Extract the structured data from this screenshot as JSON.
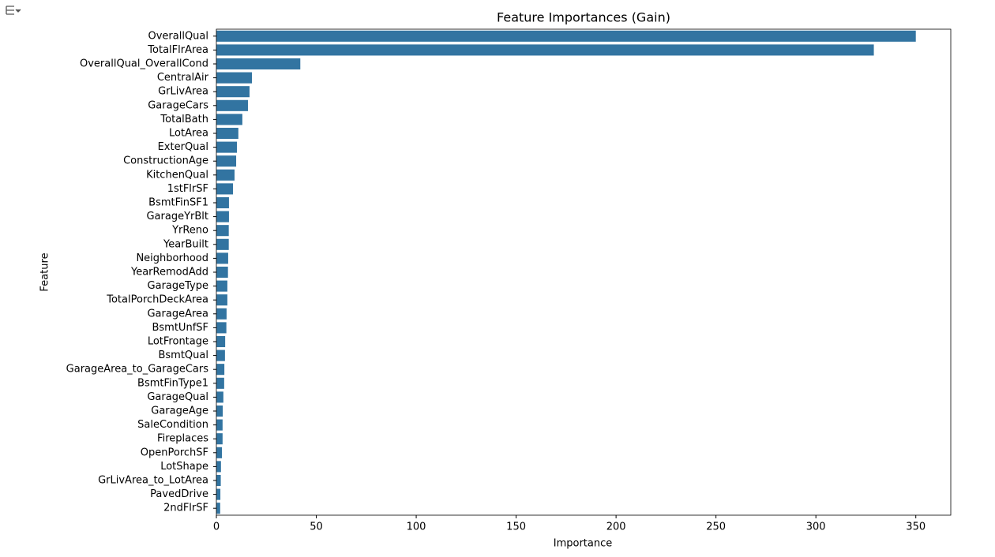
{
  "chart_data": {
    "type": "barh",
    "title": "Feature Importances (Gain)",
    "x_label": "Importance",
    "y_label": "Feature",
    "categories": [
      "OverallQual",
      "TotalFlrArea",
      "OverallQual_OverallCond",
      "CentralAir",
      "GrLivArea",
      "GarageCars",
      "TotalBath",
      "LotArea",
      "ExterQual",
      "ConstructionAge",
      "KitchenQual",
      "1stFlrSF",
      "BsmtFinSF1",
      "GarageYrBlt",
      "YrReno",
      "YearBuilt",
      "Neighborhood",
      "YearRemodAdd",
      "GarageType",
      "TotalPorchDeckArea",
      "GarageArea",
      "BsmtUnfSF",
      "LotFrontage",
      "BsmtQual",
      "GarageArea_to_GarageCars",
      "BsmtFinType1",
      "GarageQual",
      "GarageAge",
      "SaleCondition",
      "Fireplaces",
      "OpenPorchSF",
      "LotShape",
      "GrLivArea_to_LotArea",
      "PavedDrive",
      "2ndFlrSF"
    ],
    "values": [
      350,
      329,
      42,
      17.8,
      16.6,
      15.8,
      13,
      11,
      10.3,
      9.9,
      9.1,
      8.3,
      6.3,
      6.3,
      6.2,
      6.2,
      5.9,
      5.8,
      5.5,
      5.5,
      5.1,
      5,
      4.4,
      4.3,
      4,
      3.9,
      3.5,
      3.2,
      3.1,
      3.1,
      2.8,
      2.3,
      2.2,
      2,
      1.9
    ],
    "color": "#3274a1",
    "xlim": [
      0,
      367.5
    ],
    "xticks": [
      0,
      50,
      100,
      150,
      200,
      250,
      300,
      350
    ]
  }
}
